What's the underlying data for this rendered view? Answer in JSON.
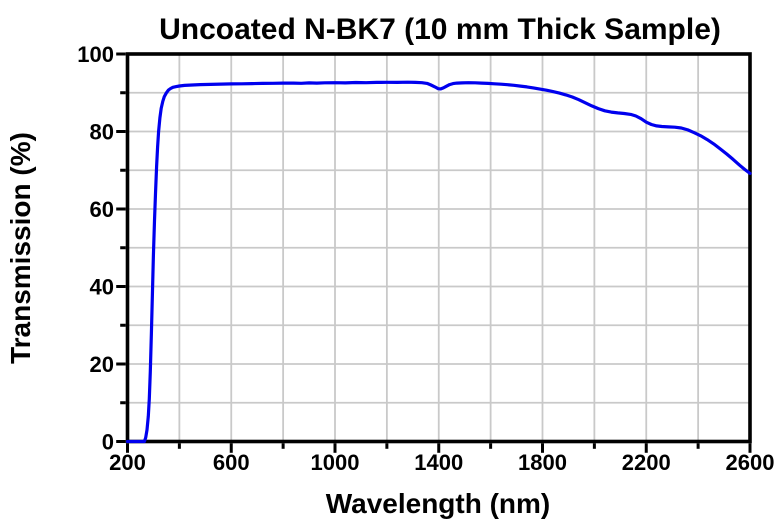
{
  "chart_data": {
    "type": "line",
    "title": "Uncoated N-BK7 (10 mm Thick Sample)",
    "xlabel": "Wavelength (nm)",
    "ylabel": "Transmission (%)",
    "xlim": [
      200,
      2600
    ],
    "ylim": [
      0,
      100
    ],
    "grid": true,
    "legend": null,
    "x_major_ticks": [
      200,
      600,
      1000,
      1400,
      1800,
      2200,
      2600
    ],
    "x_minor_ticks": [
      400,
      800,
      1200,
      1600,
      2000,
      2400
    ],
    "y_major_ticks": [
      0,
      20,
      40,
      60,
      80,
      100
    ],
    "y_minor_ticks": [
      10,
      30,
      50,
      70,
      90
    ],
    "x_gridlines": [
      400,
      600,
      800,
      1000,
      1200,
      1400,
      1600,
      1800,
      2000,
      2200,
      2400
    ],
    "y_gridlines": [
      10,
      20,
      30,
      40,
      50,
      60,
      70,
      80,
      90
    ],
    "series": [
      {
        "name": "Transmission of uncoated N-BK7, 10 mm thick",
        "color": "#0000ee",
        "points": [
          [
            200,
            0
          ],
          [
            230,
            0
          ],
          [
            250,
            0
          ],
          [
            260,
            0
          ],
          [
            265,
            0
          ],
          [
            270,
            1
          ],
          [
            275,
            3
          ],
          [
            280,
            6.5
          ],
          [
            284,
            11
          ],
          [
            288,
            18
          ],
          [
            292,
            28
          ],
          [
            296,
            38
          ],
          [
            300,
            48
          ],
          [
            304,
            57
          ],
          [
            308,
            64
          ],
          [
            312,
            71
          ],
          [
            316,
            76
          ],
          [
            320,
            80
          ],
          [
            325,
            83.5
          ],
          [
            330,
            86
          ],
          [
            336,
            87.8
          ],
          [
            342,
            89
          ],
          [
            350,
            90
          ],
          [
            358,
            90.7
          ],
          [
            366,
            91.1
          ],
          [
            375,
            91.4
          ],
          [
            388,
            91.6
          ],
          [
            400,
            91.75
          ],
          [
            420,
            91.9
          ],
          [
            450,
            92.0
          ],
          [
            480,
            92.1
          ],
          [
            520,
            92.15
          ],
          [
            560,
            92.22
          ],
          [
            600,
            92.28
          ],
          [
            640,
            92.32
          ],
          [
            680,
            92.36
          ],
          [
            720,
            92.4
          ],
          [
            760,
            92.44
          ],
          [
            800,
            92.48
          ],
          [
            840,
            92.5
          ],
          [
            870,
            92.45
          ],
          [
            900,
            92.55
          ],
          [
            930,
            92.5
          ],
          [
            960,
            92.58
          ],
          [
            1000,
            92.6
          ],
          [
            1040,
            92.55
          ],
          [
            1080,
            92.64
          ],
          [
            1120,
            92.6
          ],
          [
            1160,
            92.68
          ],
          [
            1200,
            92.7
          ],
          [
            1240,
            92.67
          ],
          [
            1280,
            92.72
          ],
          [
            1310,
            92.68
          ],
          [
            1335,
            92.6
          ],
          [
            1355,
            92.4
          ],
          [
            1370,
            92.0
          ],
          [
            1385,
            91.5
          ],
          [
            1398,
            91.05
          ],
          [
            1408,
            91.0
          ],
          [
            1418,
            91.25
          ],
          [
            1430,
            91.7
          ],
          [
            1442,
            92.1
          ],
          [
            1455,
            92.35
          ],
          [
            1470,
            92.5
          ],
          [
            1490,
            92.55
          ],
          [
            1515,
            92.6
          ],
          [
            1540,
            92.58
          ],
          [
            1565,
            92.5
          ],
          [
            1590,
            92.42
          ],
          [
            1615,
            92.32
          ],
          [
            1640,
            92.2
          ],
          [
            1665,
            92.08
          ],
          [
            1690,
            91.92
          ],
          [
            1715,
            91.72
          ],
          [
            1740,
            91.5
          ],
          [
            1765,
            91.25
          ],
          [
            1790,
            90.95
          ],
          [
            1815,
            90.65
          ],
          [
            1840,
            90.3
          ],
          [
            1865,
            89.9
          ],
          [
            1890,
            89.45
          ],
          [
            1915,
            88.9
          ],
          [
            1940,
            88.2
          ],
          [
            1965,
            87.4
          ],
          [
            1990,
            86.6
          ],
          [
            2015,
            85.9
          ],
          [
            2040,
            85.35
          ],
          [
            2065,
            85.0
          ],
          [
            2090,
            84.8
          ],
          [
            2115,
            84.65
          ],
          [
            2140,
            84.4
          ],
          [
            2160,
            84.0
          ],
          [
            2180,
            83.3
          ],
          [
            2200,
            82.4
          ],
          [
            2220,
            81.8
          ],
          [
            2240,
            81.45
          ],
          [
            2260,
            81.3
          ],
          [
            2285,
            81.2
          ],
          [
            2310,
            81.1
          ],
          [
            2335,
            80.9
          ],
          [
            2360,
            80.4
          ],
          [
            2385,
            79.7
          ],
          [
            2410,
            78.9
          ],
          [
            2435,
            77.9
          ],
          [
            2460,
            76.8
          ],
          [
            2485,
            75.5
          ],
          [
            2510,
            74.2
          ],
          [
            2535,
            72.8
          ],
          [
            2560,
            71.3
          ],
          [
            2580,
            70.2
          ],
          [
            2600,
            69.2
          ]
        ]
      }
    ]
  },
  "colors": {
    "curve": "#0000ee",
    "grid": "#c9c9c9",
    "frame": "#000000",
    "background": "#ffffff"
  }
}
